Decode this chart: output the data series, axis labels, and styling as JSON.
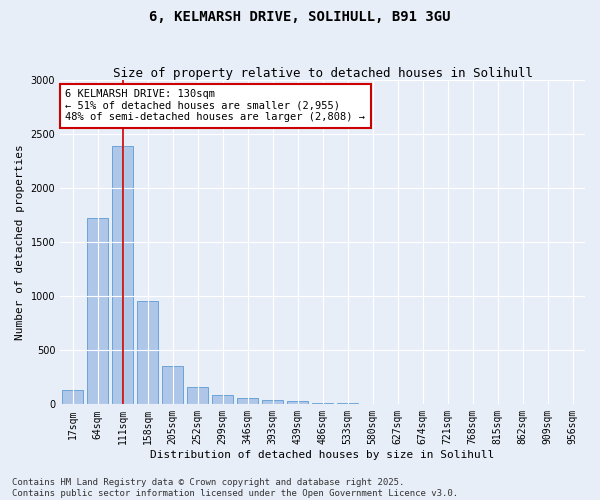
{
  "title_line1": "6, KELMARSH DRIVE, SOLIHULL, B91 3GU",
  "title_line2": "Size of property relative to detached houses in Solihull",
  "xlabel": "Distribution of detached houses by size in Solihull",
  "ylabel": "Number of detached properties",
  "categories": [
    "17sqm",
    "64sqm",
    "111sqm",
    "158sqm",
    "205sqm",
    "252sqm",
    "299sqm",
    "346sqm",
    "393sqm",
    "439sqm",
    "486sqm",
    "533sqm",
    "580sqm",
    "627sqm",
    "674sqm",
    "721sqm",
    "768sqm",
    "815sqm",
    "862sqm",
    "909sqm",
    "956sqm"
  ],
  "values": [
    130,
    1720,
    2390,
    950,
    350,
    160,
    90,
    55,
    40,
    28,
    15,
    10,
    5,
    0,
    0,
    0,
    0,
    0,
    0,
    0,
    0
  ],
  "bar_color": "#aec6e8",
  "bar_edge_color": "#5b9bd5",
  "highlight_bar_index": 2,
  "vline_x": 2,
  "vline_color": "#cc0000",
  "annotation_text": "6 KELMARSH DRIVE: 130sqm\n← 51% of detached houses are smaller (2,955)\n48% of semi-detached houses are larger (2,808) →",
  "annotation_box_color": "#ffffff",
  "annotation_box_edge_color": "#cc0000",
  "ylim": [
    0,
    3000
  ],
  "yticks": [
    0,
    500,
    1000,
    1500,
    2000,
    2500,
    3000
  ],
  "footnote": "Contains HM Land Registry data © Crown copyright and database right 2025.\nContains public sector information licensed under the Open Government Licence v3.0.",
  "bg_color": "#e8eef8",
  "plot_bg_color": "#e8eef8",
  "grid_color": "#ffffff",
  "title_fontsize": 10,
  "subtitle_fontsize": 9,
  "axis_label_fontsize": 8,
  "tick_fontsize": 7,
  "annotation_fontsize": 7.5,
  "footnote_fontsize": 6.5
}
